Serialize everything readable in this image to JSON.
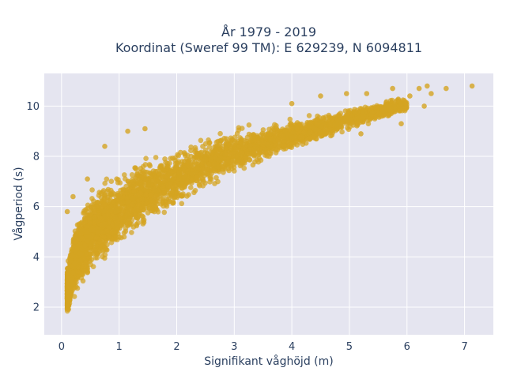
{
  "chart_data": {
    "type": "scatter",
    "title_line1": "År 1979 - 2019",
    "title_line2": "Koordinat (Sweref 99 TM): E 629239, N 6094811",
    "xlabel": "Signifikant våghöjd (m)",
    "ylabel": "Vågperiod (s)",
    "xlim": [
      -0.3,
      7.5
    ],
    "ylim": [
      0.9,
      11.3
    ],
    "xticks": [
      0,
      1,
      2,
      3,
      4,
      5,
      6,
      7
    ],
    "yticks": [
      2,
      4,
      6,
      8,
      10
    ],
    "grid": true,
    "marker_color": "#d4a422",
    "plot_bg": "#e5e5f0",
    "series": [
      {
        "envelope": {
          "x": [
            0.1,
            0.2,
            0.3,
            0.5,
            0.7,
            1.0,
            1.3,
            1.6,
            2.0,
            2.5,
            3.0,
            3.5,
            4.0,
            4.5,
            5.0,
            5.5,
            6.0
          ],
          "y_low": [
            1.3,
            1.7,
            2.1,
            2.6,
            3.1,
            3.7,
            4.3,
            4.8,
            5.4,
            6.2,
            6.8,
            7.4,
            7.9,
            8.3,
            8.8,
            9.2,
            9.5
          ],
          "y_high": [
            4.0,
            5.5,
            6.2,
            7.2,
            7.6,
            8.0,
            8.4,
            8.6,
            8.9,
            9.2,
            9.5,
            9.6,
            9.8,
            10.0,
            10.2,
            10.4,
            10.6
          ]
        },
        "outliers": [
          {
            "x": 7.13,
            "y": 10.8
          },
          {
            "x": 6.68,
            "y": 10.7
          },
          {
            "x": 6.35,
            "y": 10.8
          },
          {
            "x": 6.42,
            "y": 10.5
          },
          {
            "x": 6.21,
            "y": 10.7
          },
          {
            "x": 6.05,
            "y": 10.4
          },
          {
            "x": 5.75,
            "y": 10.7
          },
          {
            "x": 5.3,
            "y": 10.5
          },
          {
            "x": 4.95,
            "y": 10.5
          },
          {
            "x": 4.5,
            "y": 10.4
          },
          {
            "x": 4.0,
            "y": 10.1
          },
          {
            "x": 1.15,
            "y": 9.0
          },
          {
            "x": 1.45,
            "y": 9.1
          },
          {
            "x": 0.75,
            "y": 8.4
          },
          {
            "x": 0.45,
            "y": 7.1
          },
          {
            "x": 0.1,
            "y": 5.8
          },
          {
            "x": 0.2,
            "y": 6.4
          },
          {
            "x": 6.3,
            "y": 10.0
          },
          {
            "x": 5.9,
            "y": 9.3
          },
          {
            "x": 5.2,
            "y": 8.9
          }
        ]
      }
    ]
  }
}
